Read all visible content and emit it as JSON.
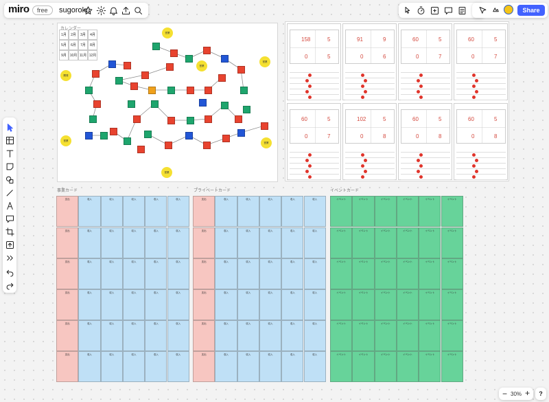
{
  "app": {
    "logo": "miro",
    "plan_badge": "free",
    "board_name": "sugoroku",
    "share_label": "Share",
    "zoom_label": "30%",
    "help_label": "?"
  },
  "icons": {
    "top": [
      "star-icon",
      "settings-icon",
      "bell-icon",
      "upload-icon",
      "search-icon"
    ],
    "right": [
      "pointer-icon",
      "timer-icon",
      "add-frame-icon",
      "comment-icon",
      "notes-icon",
      "more-icon"
    ],
    "collab": [
      "cursor-icon",
      "reaction-icon"
    ],
    "tools": [
      "select-icon",
      "frame-icon",
      "text-icon",
      "sticky-note-icon",
      "shapes-icon",
      "pen-icon",
      "arrow-icon",
      "comment-tool-icon",
      "crop-icon",
      "upload-tool-icon",
      "more-tools-icon",
      "undo-icon",
      "redo-icon"
    ]
  },
  "board": {
    "calendar_title": "カレンダー",
    "calendar": [
      [
        "1月",
        "2月",
        "3月",
        "4月"
      ],
      [
        "5月",
        "6月",
        "7月",
        "8月"
      ],
      [
        "9月",
        "10月",
        "11月",
        "12月"
      ]
    ],
    "section_labels": [
      "事業カード",
      "プライベートカード",
      "イベントカード"
    ],
    "sun_labels": [
      "営業",
      "開発",
      "営業",
      "営業",
      "営業",
      "営業"
    ],
    "player_sheets": [
      {
        "top": [
          "158",
          "5"
        ],
        "bottom": [
          "0",
          "5"
        ]
      },
      {
        "top": [
          "91",
          "9"
        ],
        "bottom": [
          "0",
          "6"
        ]
      },
      {
        "top": [
          "60",
          "5"
        ],
        "bottom": [
          "0",
          "7"
        ]
      },
      {
        "top": [
          "60",
          "5"
        ],
        "bottom": [
          "0",
          "7"
        ]
      },
      {
        "top": [
          "60",
          "5"
        ],
        "bottom": [
          "0",
          "7"
        ]
      },
      {
        "top": [
          "102",
          "5"
        ],
        "bottom": [
          "0",
          "8"
        ]
      },
      {
        "top": [
          "60",
          "5"
        ],
        "bottom": [
          "0",
          "8"
        ]
      },
      {
        "top": [
          "60",
          "5"
        ],
        "bottom": [
          "0",
          "8"
        ]
      }
    ],
    "card_titles": {
      "expense": "支出",
      "income": "収入",
      "event": "イベント"
    }
  },
  "colors": {
    "accent": "#4262ff",
    "expense": "#f7c6c1",
    "income": "#bfe0f6",
    "event": "#67d39a",
    "space_red": "#e8432f",
    "space_blue": "#2256d6",
    "space_green": "#1ea56d",
    "space_orange": "#f0a11c",
    "sun": "#f5e031"
  }
}
